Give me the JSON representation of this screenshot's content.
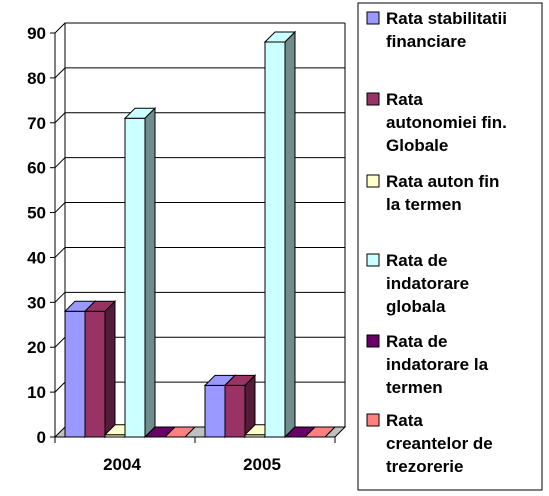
{
  "chart_data": {
    "type": "bar",
    "categories": [
      "2004",
      "2005"
    ],
    "ylim": [
      0,
      90
    ],
    "yticks": [
      0,
      10,
      20,
      30,
      40,
      50,
      60,
      70,
      80,
      90
    ],
    "grid": true,
    "legend_position": "right",
    "series": [
      {
        "name": "Rata stabilitatii financiare",
        "color": "#9999ff",
        "values": [
          28,
          11.5
        ]
      },
      {
        "name": "Rata autonomiei fin. Globale",
        "color": "#993366",
        "values": [
          28,
          11.5
        ]
      },
      {
        "name": "Rata auton fin la termen",
        "color": "#ffffcc",
        "values": [
          0.5,
          0.5
        ]
      },
      {
        "name": "Rata de indatorare globala",
        "color": "#ccffff",
        "values": [
          71,
          88
        ]
      },
      {
        "name": "Rata de indatorare la termen",
        "color": "#660066",
        "values": [
          0,
          0
        ]
      },
      {
        "name": "Rata creantelor de trezorerie",
        "color": "#ff8080",
        "values": [
          0,
          0
        ]
      }
    ]
  },
  "legend_lines": [
    [
      "Rata stabilitatii",
      "financiare"
    ],
    [
      "Rata",
      "autonomiei fin.",
      "Globale"
    ],
    [
      "Rata auton fin",
      "la termen"
    ],
    [
      "Rata de",
      "indatorare",
      "globala"
    ],
    [
      "Rata de",
      "indatorare la",
      "termen"
    ],
    [
      "Rata",
      "creantelor de",
      "trezorerie"
    ]
  ]
}
